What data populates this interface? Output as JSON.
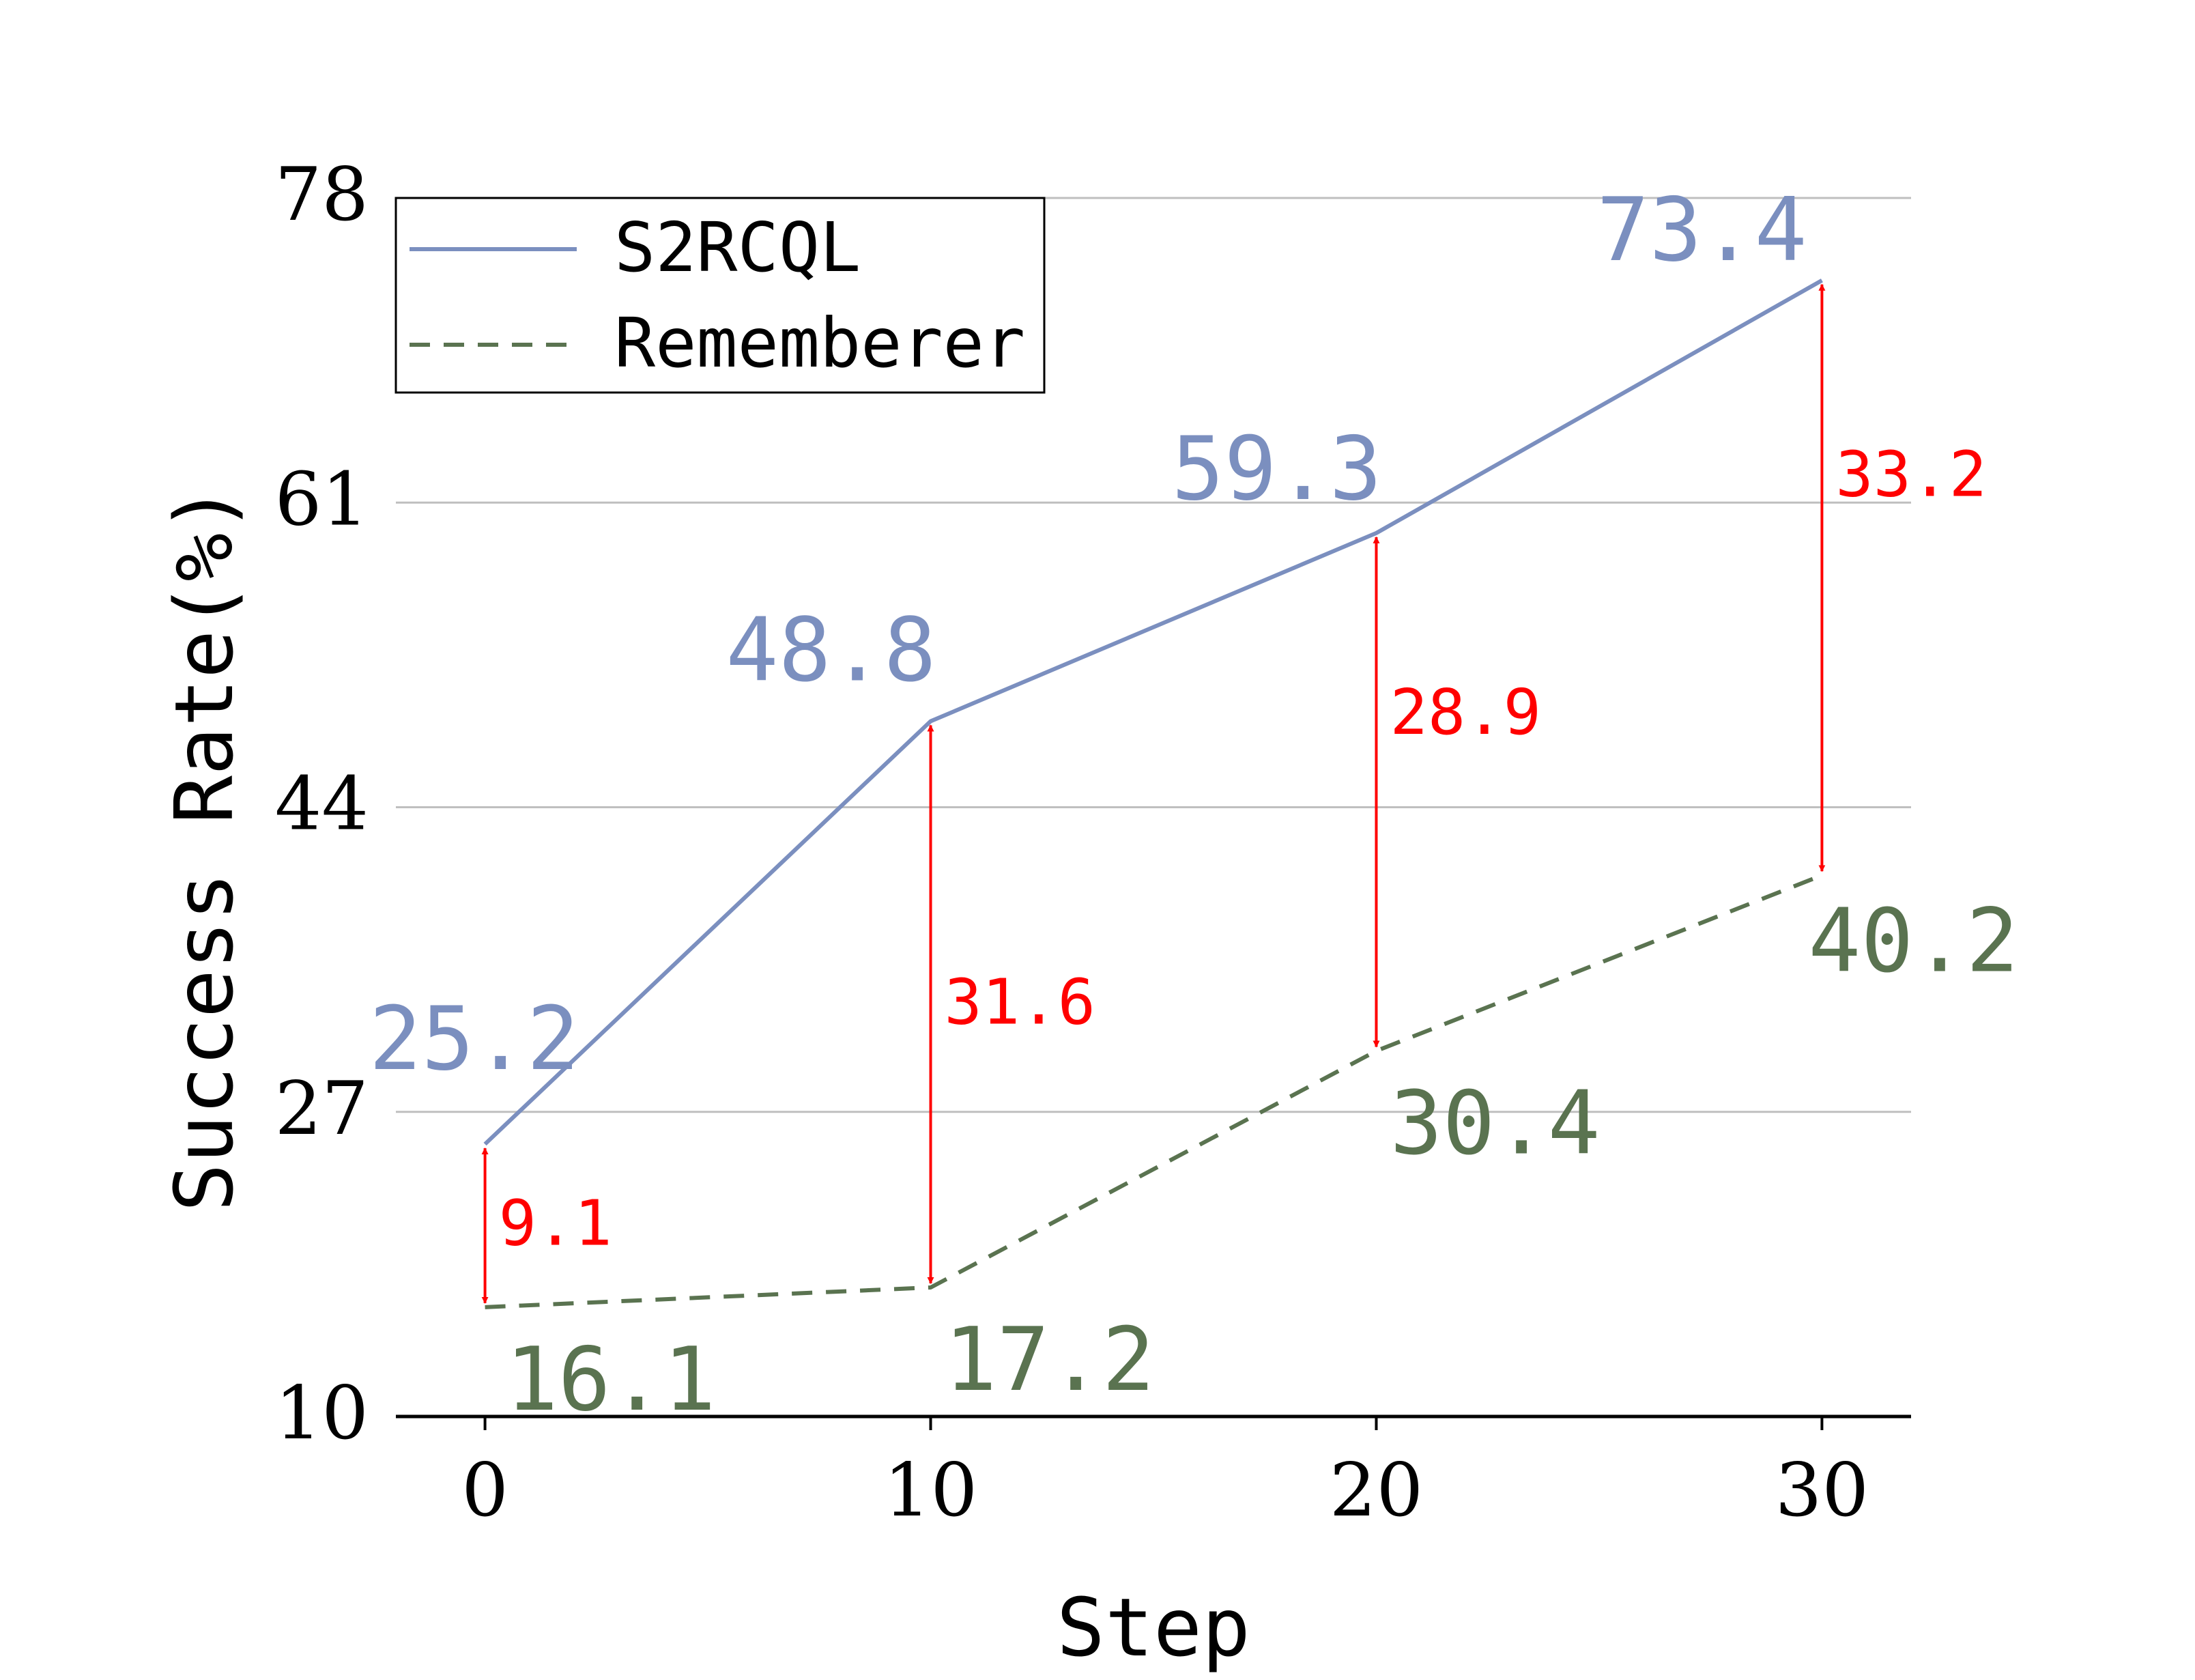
{
  "chart_data": {
    "type": "line",
    "title": "",
    "xlabel": "Step",
    "ylabel": "Success Rate(%)",
    "x": [
      0,
      10,
      20,
      30
    ],
    "xticks": [
      "0",
      "10",
      "20",
      "30"
    ],
    "yticks": [
      "10",
      "27",
      "44",
      "61",
      "78"
    ],
    "ylim": [
      10,
      78
    ],
    "xlim": [
      -2,
      32
    ],
    "grid": "horizontal",
    "legend_position": "top-left",
    "series": [
      {
        "name": "S2RCQL",
        "values": [
          25.2,
          48.8,
          59.3,
          73.4
        ],
        "labels": [
          "25.2",
          "48.8",
          "59.3",
          "73.4"
        ],
        "color": "#7b8fbf",
        "style": "solid"
      },
      {
        "name": "Rememberer",
        "values": [
          16.1,
          17.2,
          30.4,
          40.2
        ],
        "labels": [
          "16.1",
          "17.2",
          "30.4",
          "40.2"
        ],
        "color": "#5a7350",
        "style": "dashed"
      }
    ],
    "annotations": [
      {
        "x": 0,
        "from": 16.1,
        "to": 25.2,
        "label": "9.1"
      },
      {
        "x": 10,
        "from": 17.2,
        "to": 48.8,
        "label": "31.6"
      },
      {
        "x": 20,
        "from": 30.4,
        "to": 59.3,
        "label": "28.9"
      },
      {
        "x": 30,
        "from": 40.2,
        "to": 73.4,
        "label": "33.2"
      }
    ],
    "annotation_color": "#ff0000"
  }
}
